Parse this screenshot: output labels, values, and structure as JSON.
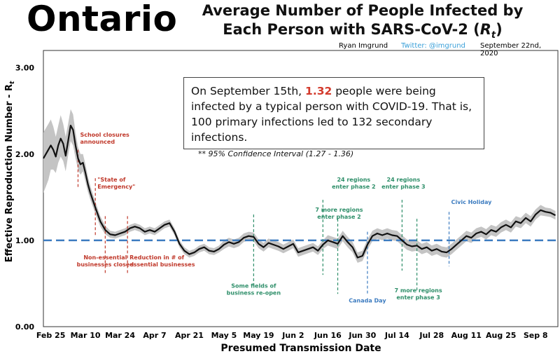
{
  "header": {
    "brand": "Ontario",
    "title_line1": "Average Number of People Infected by",
    "title_line2_prefix": "Each Person with SARS-CoV-2 (",
    "title_rt": "R",
    "title_rt_sub": "t",
    "title_line2_suffix": ")",
    "author": "Ryan Imgrund",
    "twitter": "Twitter: @imgrund",
    "date": "September 22nd, 2020"
  },
  "callout": {
    "text_before": "On September 15th, ",
    "highlight": "1.32",
    "text_after": " people were being infected by a typical person with COVID-19. That is, 100 primary infections led to 132 secondary infections.",
    "ci": "** 95% Confidence Interval (1.27 - 1.36)"
  },
  "chart_data": {
    "type": "line",
    "xlabel": "Presumed Transmission Date",
    "ylabel": "Effective Reproduction Number - R",
    "ylabel_sub": "t",
    "ylim": [
      0,
      3.2
    ],
    "y_ticks": [
      "0.00",
      "1.00",
      "2.00",
      "3.00"
    ],
    "y_tick_values": [
      0,
      1,
      2,
      3
    ],
    "x_ticks": [
      "Feb 25",
      "Mar 10",
      "Mar 24",
      "Apr 7",
      "Apr 21",
      "May 5",
      "May 19",
      "Jun 2",
      "Jun 16",
      "Jun 30",
      "Jul 14",
      "Jul 28",
      "Aug 11",
      "Aug 25",
      "Sep 8"
    ],
    "x_tick_days": [
      0,
      14,
      28,
      42,
      56,
      70,
      84,
      98,
      112,
      126,
      140,
      154,
      168,
      182,
      196
    ],
    "x_range_days": [
      -3,
      205
    ],
    "reference_line": 1.0,
    "colors": {
      "line": "#111111",
      "band": "#c4c4c4",
      "reference": "#3d7cc0",
      "red": "#c0392b",
      "green": "#2f8f6a",
      "blue": "#3d7cc0"
    },
    "series": [
      {
        "x": [
          -3,
          -1,
          0,
          1,
          2,
          3,
          4,
          5,
          6,
          7,
          8,
          9,
          10,
          11,
          12,
          13,
          14,
          15,
          16,
          18,
          20,
          22,
          24,
          26,
          28,
          30,
          32,
          34,
          36,
          38,
          40,
          42,
          44,
          46,
          48,
          50,
          52,
          54,
          56,
          58,
          60,
          62,
          64,
          66,
          68,
          70,
          72,
          74,
          76,
          78,
          80,
          82,
          84,
          86,
          88,
          90,
          92,
          94,
          96,
          98,
          100,
          102,
          104,
          106,
          108,
          110,
          112,
          114,
          116,
          118,
          120,
          122,
          124,
          126,
          128,
          130,
          132,
          134,
          136,
          138,
          140,
          142,
          144,
          146,
          148,
          150,
          152,
          154,
          156,
          158,
          160,
          162,
          164,
          166,
          168,
          170,
          172,
          174,
          176,
          178,
          180,
          182,
          184,
          186,
          188,
          190,
          192,
          194,
          196,
          198,
          200,
          202,
          204
        ],
        "y": [
          1.95,
          2.05,
          2.1,
          2.05,
          1.97,
          2.1,
          2.18,
          2.12,
          1.98,
          2.15,
          2.33,
          2.28,
          2.1,
          1.95,
          1.88,
          1.9,
          1.78,
          1.65,
          1.55,
          1.38,
          1.22,
          1.12,
          1.07,
          1.06,
          1.08,
          1.1,
          1.14,
          1.16,
          1.14,
          1.1,
          1.12,
          1.1,
          1.14,
          1.18,
          1.2,
          1.1,
          0.96,
          0.88,
          0.84,
          0.86,
          0.9,
          0.92,
          0.88,
          0.87,
          0.9,
          0.95,
          0.98,
          0.96,
          0.98,
          1.03,
          1.05,
          1.04,
          0.96,
          0.92,
          0.97,
          0.95,
          0.93,
          0.9,
          0.93,
          0.96,
          0.86,
          0.88,
          0.9,
          0.92,
          0.88,
          0.95,
          1.0,
          0.98,
          0.96,
          1.05,
          0.98,
          0.92,
          0.8,
          0.82,
          0.95,
          1.05,
          1.08,
          1.06,
          1.08,
          1.06,
          1.05,
          1.0,
          0.95,
          0.93,
          0.94,
          0.9,
          0.92,
          0.88,
          0.9,
          0.87,
          0.86,
          0.9,
          0.95,
          1.0,
          1.05,
          1.03,
          1.08,
          1.1,
          1.07,
          1.12,
          1.1,
          1.15,
          1.18,
          1.15,
          1.22,
          1.2,
          1.26,
          1.22,
          1.3,
          1.35,
          1.33,
          1.32,
          1.29
        ],
        "lower": [
          1.55,
          1.7,
          1.82,
          1.82,
          1.78,
          1.9,
          1.97,
          1.92,
          1.8,
          1.98,
          2.15,
          2.1,
          1.95,
          1.82,
          1.76,
          1.8,
          1.68,
          1.56,
          1.47,
          1.31,
          1.16,
          1.07,
          1.03,
          1.02,
          1.04,
          1.06,
          1.1,
          1.12,
          1.1,
          1.06,
          1.08,
          1.06,
          1.1,
          1.14,
          1.16,
          1.06,
          0.92,
          0.84,
          0.8,
          0.82,
          0.86,
          0.88,
          0.84,
          0.83,
          0.86,
          0.9,
          0.93,
          0.91,
          0.93,
          0.98,
          1.0,
          0.99,
          0.91,
          0.87,
          0.92,
          0.9,
          0.88,
          0.85,
          0.88,
          0.91,
          0.81,
          0.83,
          0.85,
          0.87,
          0.83,
          0.9,
          0.94,
          0.92,
          0.9,
          0.99,
          0.92,
          0.86,
          0.74,
          0.76,
          0.89,
          0.99,
          1.02,
          1.0,
          1.02,
          1.0,
          0.99,
          0.94,
          0.89,
          0.87,
          0.88,
          0.84,
          0.86,
          0.82,
          0.84,
          0.81,
          0.8,
          0.84,
          0.89,
          0.94,
          0.99,
          0.97,
          1.02,
          1.04,
          1.01,
          1.06,
          1.04,
          1.09,
          1.12,
          1.09,
          1.16,
          1.14,
          1.2,
          1.16,
          1.24,
          1.29,
          1.28,
          1.27,
          1.24
        ],
        "upper": [
          2.25,
          2.35,
          2.4,
          2.32,
          2.2,
          2.33,
          2.45,
          2.35,
          2.2,
          2.35,
          2.52,
          2.46,
          2.25,
          2.08,
          2.0,
          2.0,
          1.88,
          1.74,
          1.63,
          1.45,
          1.28,
          1.17,
          1.11,
          1.1,
          1.12,
          1.14,
          1.18,
          1.2,
          1.18,
          1.14,
          1.16,
          1.14,
          1.18,
          1.22,
          1.24,
          1.14,
          1.0,
          0.92,
          0.88,
          0.9,
          0.94,
          0.96,
          0.92,
          0.91,
          0.94,
          1.0,
          1.03,
          1.01,
          1.03,
          1.08,
          1.1,
          1.09,
          1.01,
          0.97,
          1.02,
          1.0,
          0.98,
          0.95,
          0.98,
          1.01,
          0.91,
          0.93,
          0.95,
          0.97,
          0.93,
          1.0,
          1.06,
          1.04,
          1.02,
          1.11,
          1.04,
          0.98,
          0.86,
          0.88,
          1.01,
          1.11,
          1.14,
          1.12,
          1.14,
          1.12,
          1.11,
          1.06,
          1.01,
          0.99,
          1.0,
          0.96,
          0.98,
          0.94,
          0.96,
          0.93,
          0.92,
          0.96,
          1.01,
          1.06,
          1.11,
          1.09,
          1.14,
          1.16,
          1.13,
          1.18,
          1.16,
          1.21,
          1.24,
          1.21,
          1.28,
          1.26,
          1.32,
          1.28,
          1.36,
          1.41,
          1.38,
          1.37,
          1.34
        ]
      }
    ],
    "annotations": [
      {
        "day": 11,
        "label": [
          "School closures",
          "announced"
        ],
        "color": "red",
        "y_from": 2.05,
        "y_to": 1.6,
        "text_y": 2.2,
        "side": "right"
      },
      {
        "day": 18,
        "label": [
          "\"State of",
          "Emergency\""
        ],
        "color": "red",
        "y_from": 1.72,
        "y_to": 1.05,
        "text_y": 1.68,
        "side": "right"
      },
      {
        "day": 22,
        "label": [
          "Non-essential",
          "businesses closed"
        ],
        "color": "red",
        "y_from": 1.28,
        "y_to": 0.6,
        "text_y": 0.78,
        "side": "center"
      },
      {
        "day": 31,
        "label": [
          "Reduction in # of",
          "essential businesses"
        ],
        "color": "red",
        "y_from": 1.28,
        "y_to": 0.6,
        "text_y": 0.78,
        "side": "right"
      },
      {
        "day": 82,
        "label": [
          "Some fields of",
          "business re-open"
        ],
        "color": "green",
        "y_from": 1.3,
        "y_to": 0.46,
        "text_y": 0.45,
        "side": "center"
      },
      {
        "day": 110,
        "label": [
          "24 regions",
          "enter phase 2"
        ],
        "color": "green",
        "y_from": 1.47,
        "y_to": 0.6,
        "text_y": 1.68,
        "side": "left"
      },
      {
        "day": 116,
        "label": [
          "7 more regions",
          "enter phase 2"
        ],
        "color": "green",
        "y_from": 1.25,
        "y_to": 0.38,
        "text_y": 1.33,
        "side": "right"
      },
      {
        "day": 128,
        "label": [
          "Canada Day"
        ],
        "color": "blue",
        "y_from": 1.1,
        "y_to": 0.38,
        "text_y": 0.28,
        "side": "center"
      },
      {
        "day": 142,
        "label": [
          "24 regions",
          "enter phase 3"
        ],
        "color": "green",
        "y_from": 1.47,
        "y_to": 0.65,
        "text_y": 1.68,
        "side": "right"
      },
      {
        "day": 148,
        "label": [
          "7 more regions",
          "enter phase 3"
        ],
        "color": "green",
        "y_from": 1.25,
        "y_to": 0.42,
        "text_y": 0.4,
        "side": "right"
      },
      {
        "day": 161,
        "label": [
          "Civic Holiday"
        ],
        "color": "blue",
        "y_from": 1.33,
        "y_to": 0.7,
        "text_y": 1.42,
        "side": "right"
      }
    ]
  }
}
